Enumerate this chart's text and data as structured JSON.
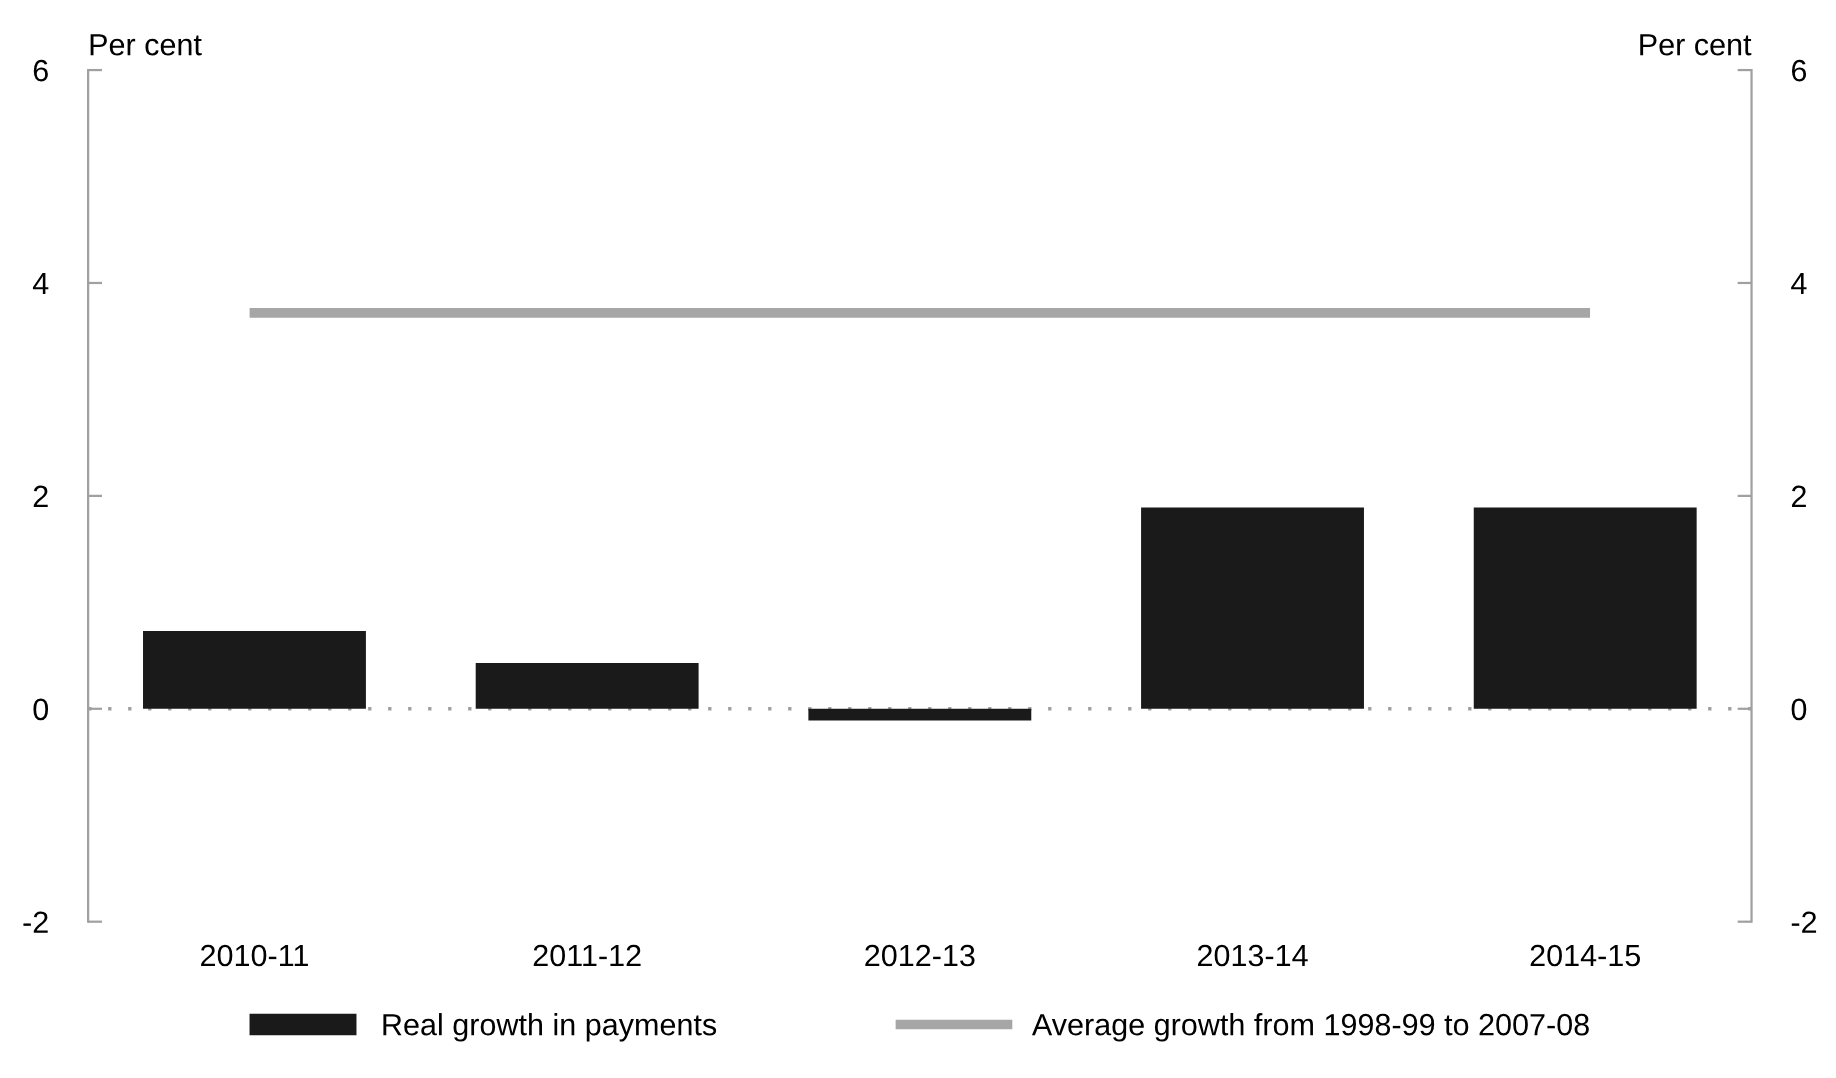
{
  "chart_data": {
    "type": "bar",
    "ylabel": "Per cent",
    "y2label": "Per cent",
    "categories": [
      "2010-11",
      "2011-12",
      "2012-13",
      "2013-14",
      "2014-15"
    ],
    "series": [
      {
        "name": "Real growth in payments",
        "color": "#1a1a1a",
        "values": [
          0.73,
          0.43,
          -0.11,
          1.89,
          1.89
        ]
      },
      {
        "name": "Average growth from 1998-99 to 2007-08",
        "type": "line",
        "color": "#a6a6a6",
        "values": [
          3.72,
          3.72,
          3.72,
          3.72,
          3.72
        ]
      }
    ],
    "ylim": [
      -2,
      6
    ],
    "yticks": [
      -2,
      0,
      2,
      4,
      6
    ],
    "y2lim": [
      -2,
      6
    ],
    "y2ticks": [
      -2,
      0,
      2,
      4,
      6
    ],
    "ref_lines": [
      {
        "axis": "y",
        "value": 0,
        "color": "#a0a0a0",
        "line_style": "dotted"
      }
    ],
    "grid": false,
    "legend": "bottom"
  }
}
